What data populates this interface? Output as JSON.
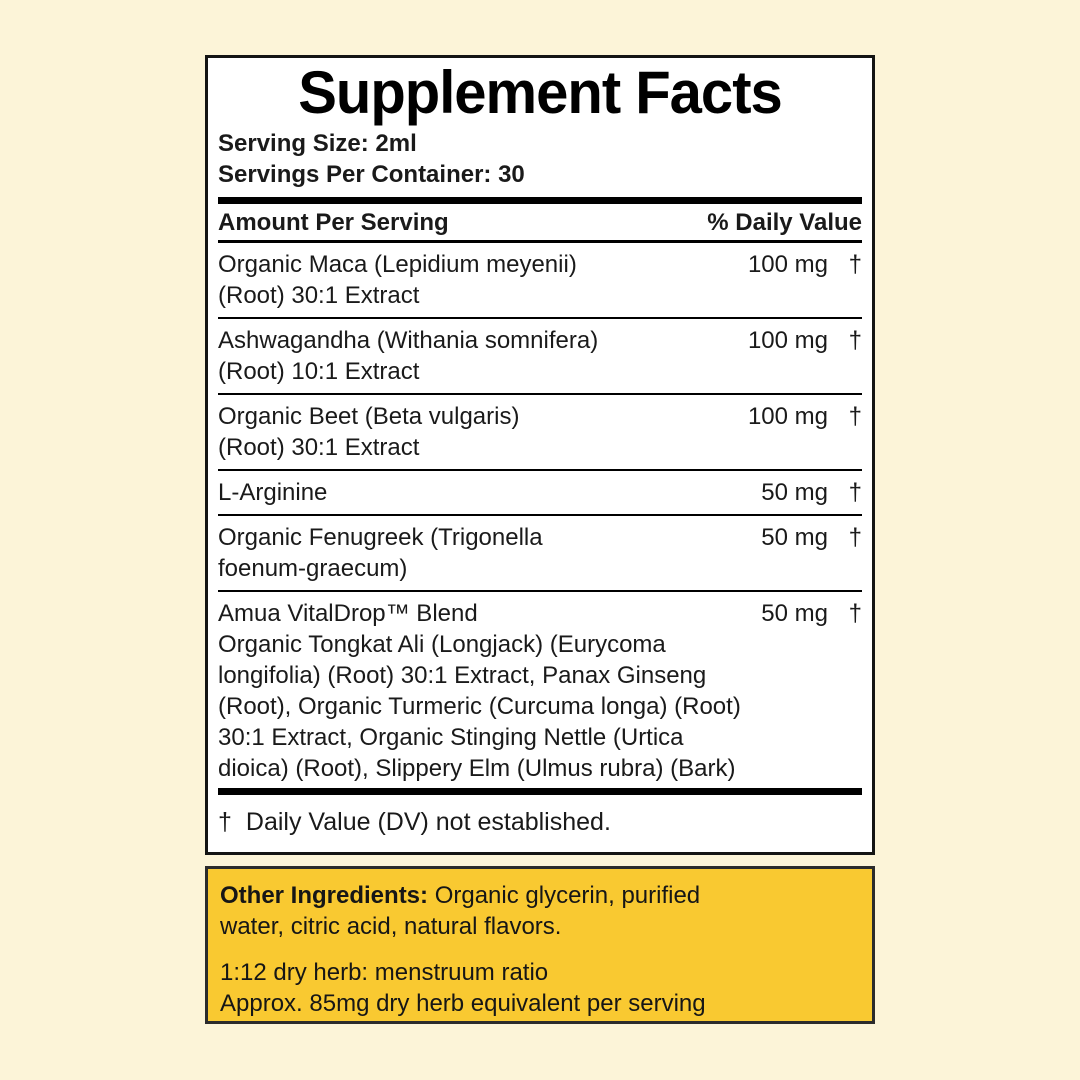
{
  "background_color": "#FCF4D8",
  "accent_yellow": "#F9C931",
  "panel": {
    "title": "Supplement Facts",
    "serving_size": "Serving Size: 2ml",
    "servings_per_container": "Servings Per Container: 30",
    "columns": {
      "amount_label": "Amount Per Serving",
      "daily_value_label": "% Daily Value"
    },
    "rows": [
      {
        "name_lines": [
          "Organic Maca (Lepidium meyenii)",
          "(Root) 30:1 Extract"
        ],
        "amount": "100 mg",
        "daily_value": "†"
      },
      {
        "name_lines": [
          "Ashwagandha (Withania somnifera)",
          "(Root) 10:1 Extract"
        ],
        "amount": "100 mg",
        "daily_value": "†"
      },
      {
        "name_lines": [
          "Organic Beet (Beta vulgaris)",
          "(Root) 30:1 Extract"
        ],
        "amount": "100 mg",
        "daily_value": "†"
      },
      {
        "name_lines": [
          "L-Arginine"
        ],
        "amount": "50 mg",
        "daily_value": "†"
      },
      {
        "name_lines": [
          "Organic Fenugreek (Trigonella",
          "foenum-graecum)"
        ],
        "amount": "50 mg",
        "daily_value": "†"
      },
      {
        "name_lines": [
          "Amua VitalDrop™ Blend"
        ],
        "amount": "50 mg",
        "daily_value": "†",
        "description_lines": [
          "Organic Tongkat Ali (Longjack) (Eurycoma",
          "longifolia) (Root) 30:1 Extract, Panax Ginseng",
          "(Root), Organic Turmeric (Curcuma longa) (Root)",
          "30:1 Extract, Organic Stinging Nettle (Urtica",
          "dioica) (Root), Slippery Elm (Ulmus rubra) (Bark)"
        ]
      }
    ],
    "footnote_symbol": "†",
    "footnote_text": "Daily Value (DV) not established."
  },
  "other_box": {
    "label": "Other Ingredients:",
    "line1_rest": " Organic glycerin, purified",
    "line2": "water, citric acid, natural flavors.",
    "ratio_line1": "1:12 dry herb: menstruum ratio",
    "ratio_line2": "Approx. 85mg dry herb equivalent per serving"
  }
}
